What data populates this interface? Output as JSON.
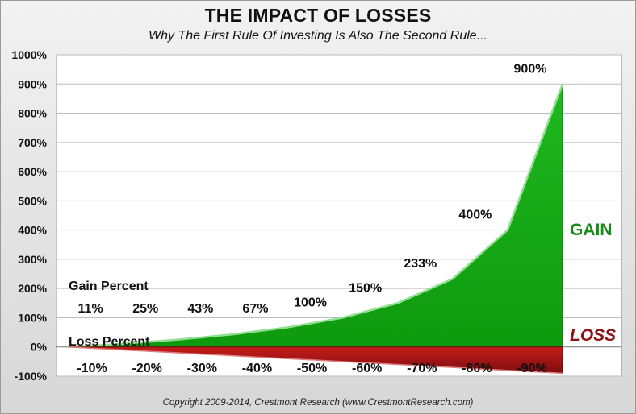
{
  "chart_data": {
    "type": "area",
    "title": "THE IMPACT OF LOSSES",
    "subtitle": "Why The First Rule Of Investing Is Also The Second Rule...",
    "categories": [
      "-10%",
      "-20%",
      "-30%",
      "-40%",
      "-50%",
      "-60%",
      "-70%",
      "-80%",
      "-90%"
    ],
    "series": [
      {
        "name": "Gain Percent",
        "values": [
          11,
          25,
          43,
          67,
          100,
          150,
          233,
          400,
          900
        ],
        "labels": [
          "11%",
          "25%",
          "43%",
          "67%",
          "100%",
          "150%",
          "233%",
          "400%",
          "900%"
        ],
        "color": "#16a016",
        "tag": "GAIN"
      },
      {
        "name": "Loss Percent",
        "values": [
          -10,
          -20,
          -30,
          -40,
          -50,
          -60,
          -70,
          -80,
          -90
        ],
        "color": "#a31717",
        "tag": "LOSS"
      }
    ],
    "yticks": [
      "1000%",
      "900%",
      "800%",
      "700%",
      "600%",
      "500%",
      "400%",
      "300%",
      "200%",
      "100%",
      "0%",
      "-100%"
    ],
    "ylim": [
      -100,
      1000
    ],
    "grid": true
  },
  "footer": {
    "copyright": "Copyright 2009-2014, Crestmont Research (www.CrestmontResearch.com)"
  }
}
